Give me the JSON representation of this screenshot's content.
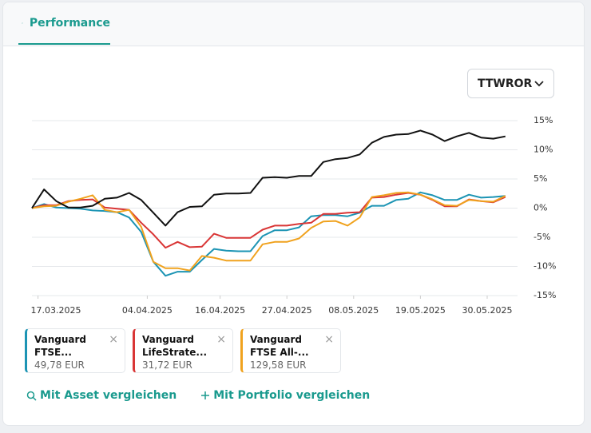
{
  "ui": {
    "tab": "Performance",
    "dropdown": "TTWROR",
    "links": [
      "Mit Asset vergleichen",
      "Mit Portfolio vergleichen"
    ]
  },
  "chart_data": {
    "type": "line",
    "x": [
      "2025-03-16",
      "2025-03-18",
      "2025-03-20",
      "2025-03-22",
      "2025-03-24",
      "2025-03-26",
      "2025-03-28",
      "2025-03-30",
      "2025-04-01",
      "2025-04-03",
      "2025-04-05",
      "2025-04-07",
      "2025-04-09",
      "2025-04-11",
      "2025-04-13",
      "2025-04-15",
      "2025-04-17",
      "2025-04-19",
      "2025-04-21",
      "2025-04-23",
      "2025-04-25",
      "2025-04-27",
      "2025-04-29",
      "2025-05-01",
      "2025-05-03",
      "2025-05-05",
      "2025-05-07",
      "2025-05-09",
      "2025-05-11",
      "2025-05-13",
      "2025-05-15",
      "2025-05-17",
      "2025-05-19",
      "2025-05-21",
      "2025-05-23",
      "2025-05-25",
      "2025-05-27",
      "2025-05-29",
      "2025-05-31",
      "2025-06-02"
    ],
    "xlim": [
      "2025-03-16",
      "2025-06-04"
    ],
    "xticks": [
      {
        "value": "2025-03-17",
        "label": "17.03.2025"
      },
      {
        "value": "2025-04-04",
        "label": "04.04.2025"
      },
      {
        "value": "2025-04-16",
        "label": "16.04.2025"
      },
      {
        "value": "2025-04-27",
        "label": "27.04.2025"
      },
      {
        "value": "2025-05-08",
        "label": "08.05.2025"
      },
      {
        "value": "2025-05-19",
        "label": "19.05.2025"
      },
      {
        "value": "2025-05-30",
        "label": "30.05.2025"
      }
    ],
    "ylim": [
      -15,
      15
    ],
    "yticks": [
      {
        "value": 15,
        "label": "15%"
      },
      {
        "value": 10,
        "label": "10%"
      },
      {
        "value": 5,
        "label": "5%"
      },
      {
        "value": 0,
        "label": "0%"
      },
      {
        "value": -5,
        "label": "-5%"
      },
      {
        "value": -10,
        "label": "-10%"
      },
      {
        "value": -15,
        "label": "-15%"
      }
    ],
    "grid": true,
    "series": [
      {
        "name": "Vanguard FTSE...",
        "amount": "49,78 EUR",
        "color": "#1c94b4",
        "values": [
          0,
          0.7,
          0.1,
          0,
          -0.1,
          -0.4,
          -0.5,
          -0.7,
          -1.6,
          -4.1,
          -9.2,
          -11.6,
          -10.9,
          -10.9,
          -8.9,
          -7.0,
          -7.3,
          -7.4,
          -7.4,
          -4.8,
          -3.8,
          -3.8,
          -3.3,
          -1.4,
          -1.2,
          -1.2,
          -1.4,
          -0.8,
          0.4,
          0.4,
          1.4,
          1.6,
          2.7,
          2.2,
          1.4,
          1.4,
          2.3,
          1.8,
          1.9,
          2.1
        ]
      },
      {
        "name": "Vanguard LifeStrate...",
        "amount": "31,72 EUR",
        "color": "#d93636",
        "values": [
          0,
          0.5,
          0.5,
          1.2,
          1.4,
          1.5,
          0.1,
          -0.1,
          -0.3,
          -2.5,
          -4.5,
          -6.8,
          -5.8,
          -6.7,
          -6.6,
          -4.4,
          -5.1,
          -5.1,
          -5.1,
          -3.7,
          -3.0,
          -3.0,
          -2.7,
          -2.5,
          -1.0,
          -1.0,
          -0.8,
          -0.7,
          1.8,
          1.9,
          2.3,
          2.6,
          2.3,
          1.4,
          0.3,
          0.3,
          1.5,
          1.2,
          1.0,
          1.9
        ]
      },
      {
        "name": "Vanguard FTSE All-...",
        "amount": "129,58 EUR",
        "color": "#f0a21e",
        "values": [
          0,
          0.3,
          0.4,
          1.1,
          1.6,
          2.2,
          -0.3,
          -0.7,
          -0.3,
          -3.2,
          -9.2,
          -10.3,
          -10.3,
          -10.7,
          -8.2,
          -8.5,
          -9.0,
          -9.0,
          -9.0,
          -6.2,
          -5.8,
          -5.8,
          -5.2,
          -3.4,
          -2.3,
          -2.2,
          -3.0,
          -1.6,
          1.9,
          2.2,
          2.6,
          2.7,
          2.3,
          1.5,
          0.5,
          0.4,
          1.4,
          1.2,
          1.1,
          2.1
        ]
      },
      {
        "color": "#111111",
        "values": [
          0,
          3.2,
          1.2,
          0.1,
          0.1,
          0.4,
          1.6,
          1.8,
          2.6,
          1.4,
          -0.8,
          -3.0,
          -0.7,
          0.2,
          0.3,
          2.3,
          2.5,
          2.5,
          2.6,
          5.2,
          5.3,
          5.2,
          5.5,
          5.5,
          7.9,
          8.4,
          8.6,
          9.2,
          11.2,
          12.2,
          12.6,
          12.7,
          13.3,
          12.6,
          11.5,
          12.3,
          12.9,
          12.1,
          11.9,
          12.3
        ]
      }
    ]
  }
}
